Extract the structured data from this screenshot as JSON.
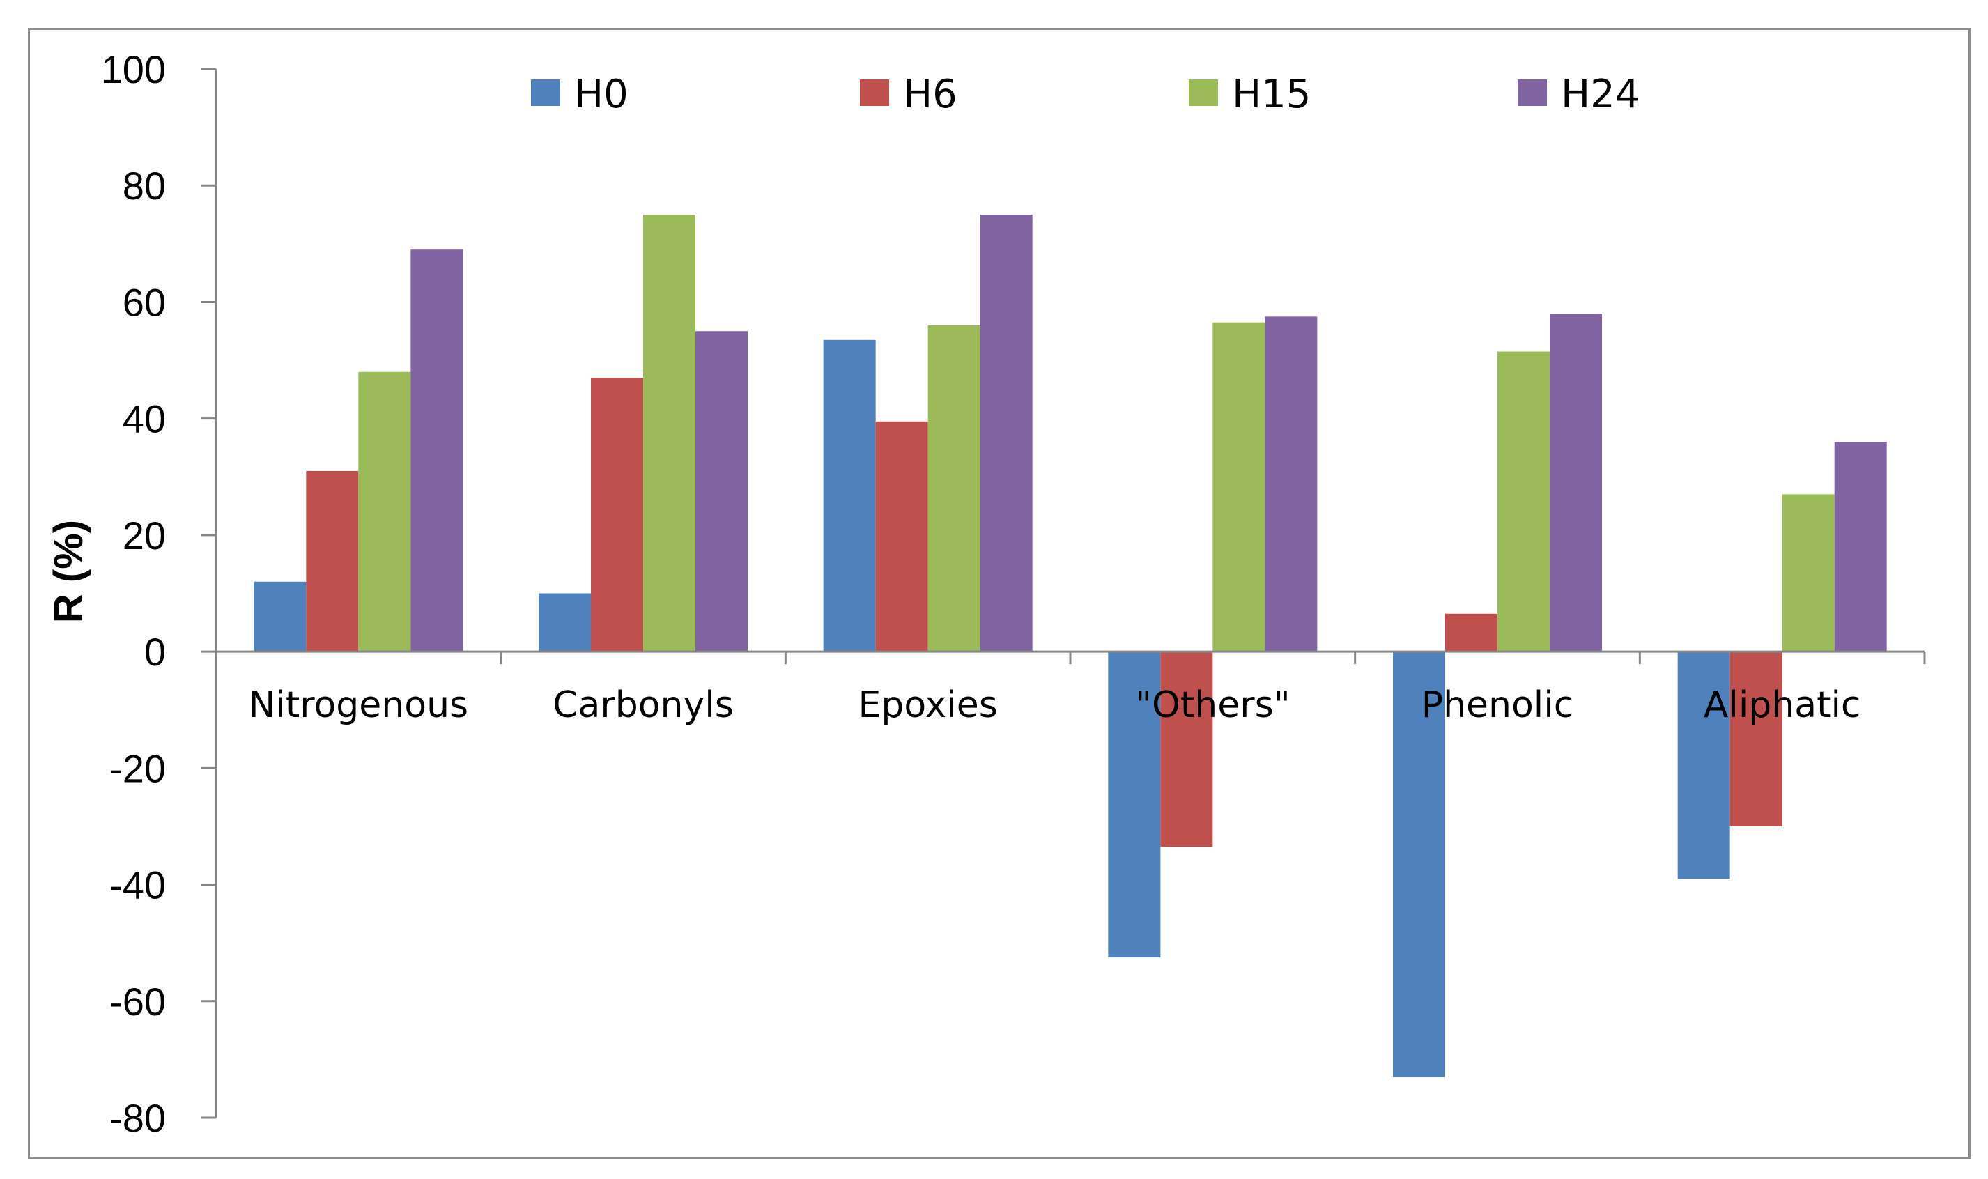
{
  "chart_data": {
    "type": "bar",
    "title": "",
    "xlabel": "",
    "ylabel": "R (%)",
    "ylim": [
      -80,
      100
    ],
    "yticks": [
      100,
      80,
      60,
      40,
      20,
      0,
      -20,
      -40,
      -60,
      -80
    ],
    "ytick_labels": [
      "100",
      "80",
      "60",
      "40",
      "20",
      "0",
      "-20",
      "-40",
      "-60",
      "-80"
    ],
    "grid": false,
    "legend_position": "top",
    "categories": [
      "Nitrogenous",
      "Carbonyls",
      "Epoxies",
      "\"Others\"",
      "Phenolic",
      "Aliphatic"
    ],
    "series": [
      {
        "name": "H0",
        "color": "#4f81bd",
        "values": [
          12,
          10,
          53.5,
          -52.5,
          -73,
          -39
        ]
      },
      {
        "name": "H6",
        "color": "#c0504d",
        "values": [
          31,
          47,
          39.5,
          -33.5,
          6.5,
          -30
        ]
      },
      {
        "name": "H15",
        "color": "#9bbb59",
        "values": [
          48,
          75,
          56,
          56.5,
          51.5,
          27
        ]
      },
      {
        "name": "H24",
        "color": "#8064a2",
        "values": [
          69,
          55,
          75,
          57.5,
          58,
          36
        ]
      }
    ]
  }
}
